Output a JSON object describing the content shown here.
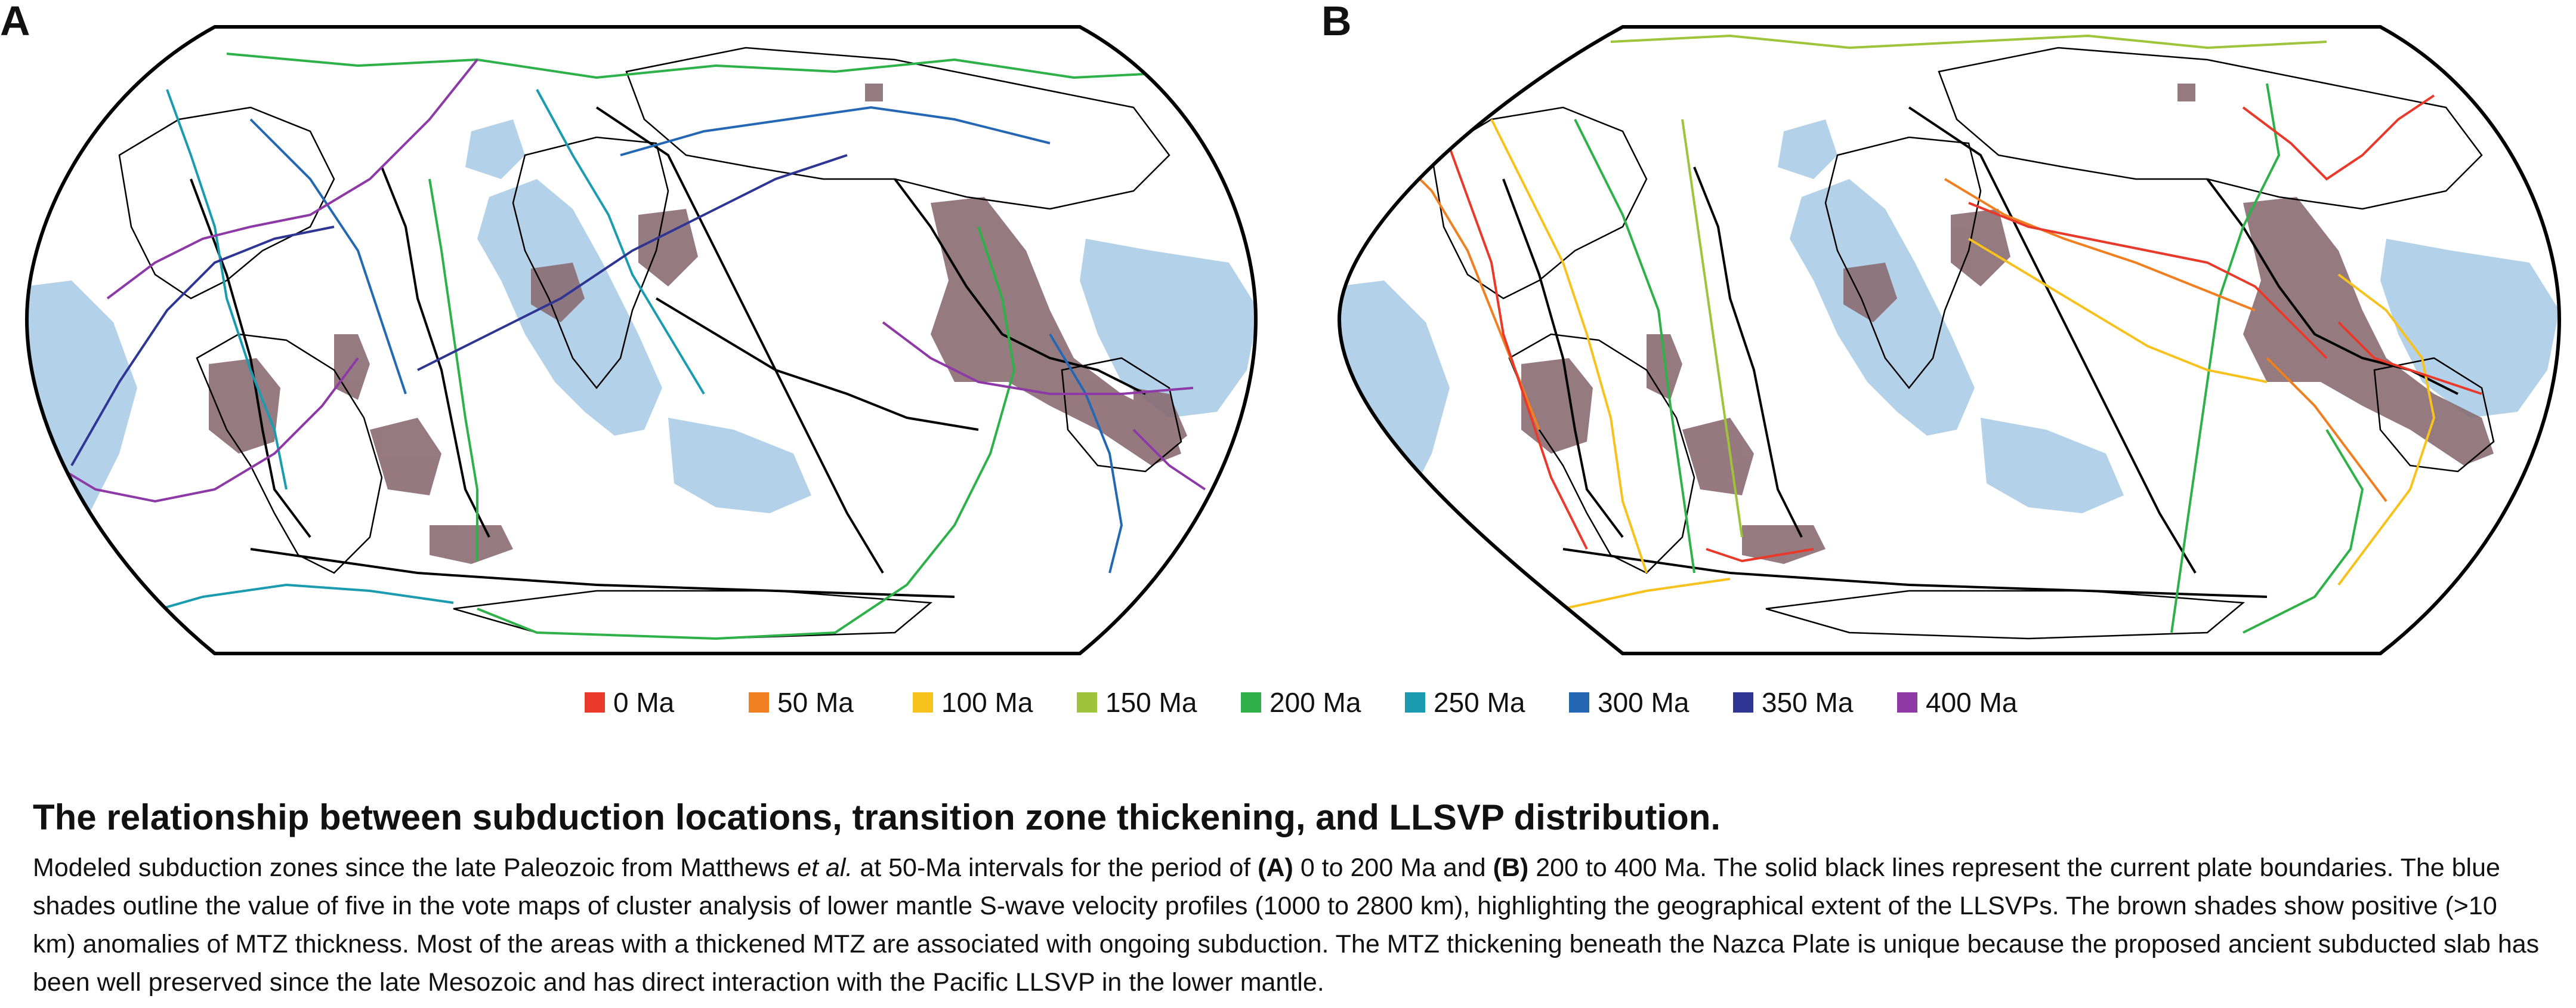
{
  "panels": [
    {
      "letter": "A",
      "period": "0 to 200 Ma"
    },
    {
      "letter": "B",
      "period": "200 to 400 Ma"
    }
  ],
  "legend": [
    {
      "label": "0 Ma",
      "color": "#e8392a"
    },
    {
      "label": "50 Ma",
      "color": "#f07f22"
    },
    {
      "label": "100 Ma",
      "color": "#f7c21e"
    },
    {
      "label": "150 Ma",
      "color": "#9dc43a"
    },
    {
      "label": "200 Ma",
      "color": "#2fb14a"
    },
    {
      "label": "250 Ma",
      "color": "#1a9bb0"
    },
    {
      "label": "300 Ma",
      "color": "#2468b3"
    },
    {
      "label": "350 Ma",
      "color": "#2f3593"
    },
    {
      "label": "400 Ma",
      "color": "#8e3aa6"
    }
  ],
  "colors": {
    "llsvp_blue": "#b3d1e8",
    "mtz_brown": "#8a6b72",
    "plate_boundary": "#000000"
  },
  "caption": {
    "title": "The relationship between subduction locations, transition zone thickening, and LLSVP distribution.",
    "s1": "Modeled subduction zones since the late Paleozoic from Matthews ",
    "s1_italic": "et al.",
    "s2": " at 50-Ma intervals for the period of ",
    "a_label": "(A)",
    "a_text": " 0 to 200 Ma and ",
    "b_label": "(B)",
    "b_text": " 200 to 400 Ma. The solid black lines represent the current plate boundaries. The blue shades outline the value of five in the vote maps of cluster analysis of lower mantle S-wave velocity profiles (1000 to 2800 km), highlighting the geographical extent of the LLSVPs. The brown shades show positive (>10 km) anomalies of MTZ thickness. Most of the areas with a thickened MTZ are associated with ongoing subduction. The MTZ thickening beneath the Nazca Plate is unique because the proposed ancient subducted slab has been well preserved since the late Mesozoic and has direct interaction with the Pacific LLSVP in the lower mantle."
  }
}
